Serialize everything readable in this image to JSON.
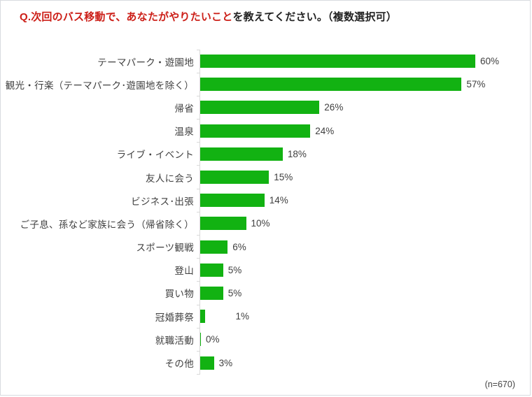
{
  "title": {
    "highlight": "Q.次回のバス移動で、あなたがやりたいこと",
    "rest": "を教えてください。（複数選択可）"
  },
  "footnote": "(n=670)",
  "colors": {
    "bar": "#12b212",
    "title_highlight": "#cc1e17",
    "text": "#3f3f3f",
    "axis": "#d9d9d9"
  },
  "chart_data": {
    "type": "bar",
    "orientation": "horizontal",
    "title": "Q.次回のバス移動で、あなたがやりたいことを教えてください。（複数選択可）",
    "note": "(n=670)",
    "xlim": [
      0,
      61
    ],
    "grid": false,
    "legend": false,
    "data_label_position": "outside-end",
    "categories": [
      "テーマパーク・遊園地",
      "観光・行楽（テーマパーク･遊園地を除く）",
      "帰省",
      "温泉",
      "ライブ・イベント",
      "友人に会う",
      "ビジネス･出張",
      "ご子息、孫など家族に会う（帰省除く）",
      "スポーツ観戦",
      "登山",
      "買い物",
      "冠婚葬祭",
      "就職活動",
      "その他"
    ],
    "values": [
      60,
      57,
      26,
      24,
      18,
      15,
      14,
      10,
      6,
      5,
      5,
      1,
      0,
      3
    ],
    "value_labels": [
      "60%",
      "57%",
      "26%",
      "24%",
      "18%",
      "15%",
      "14%",
      "10%",
      "6%",
      "5%",
      "5%",
      "1%",
      "0%",
      "3%"
    ]
  }
}
